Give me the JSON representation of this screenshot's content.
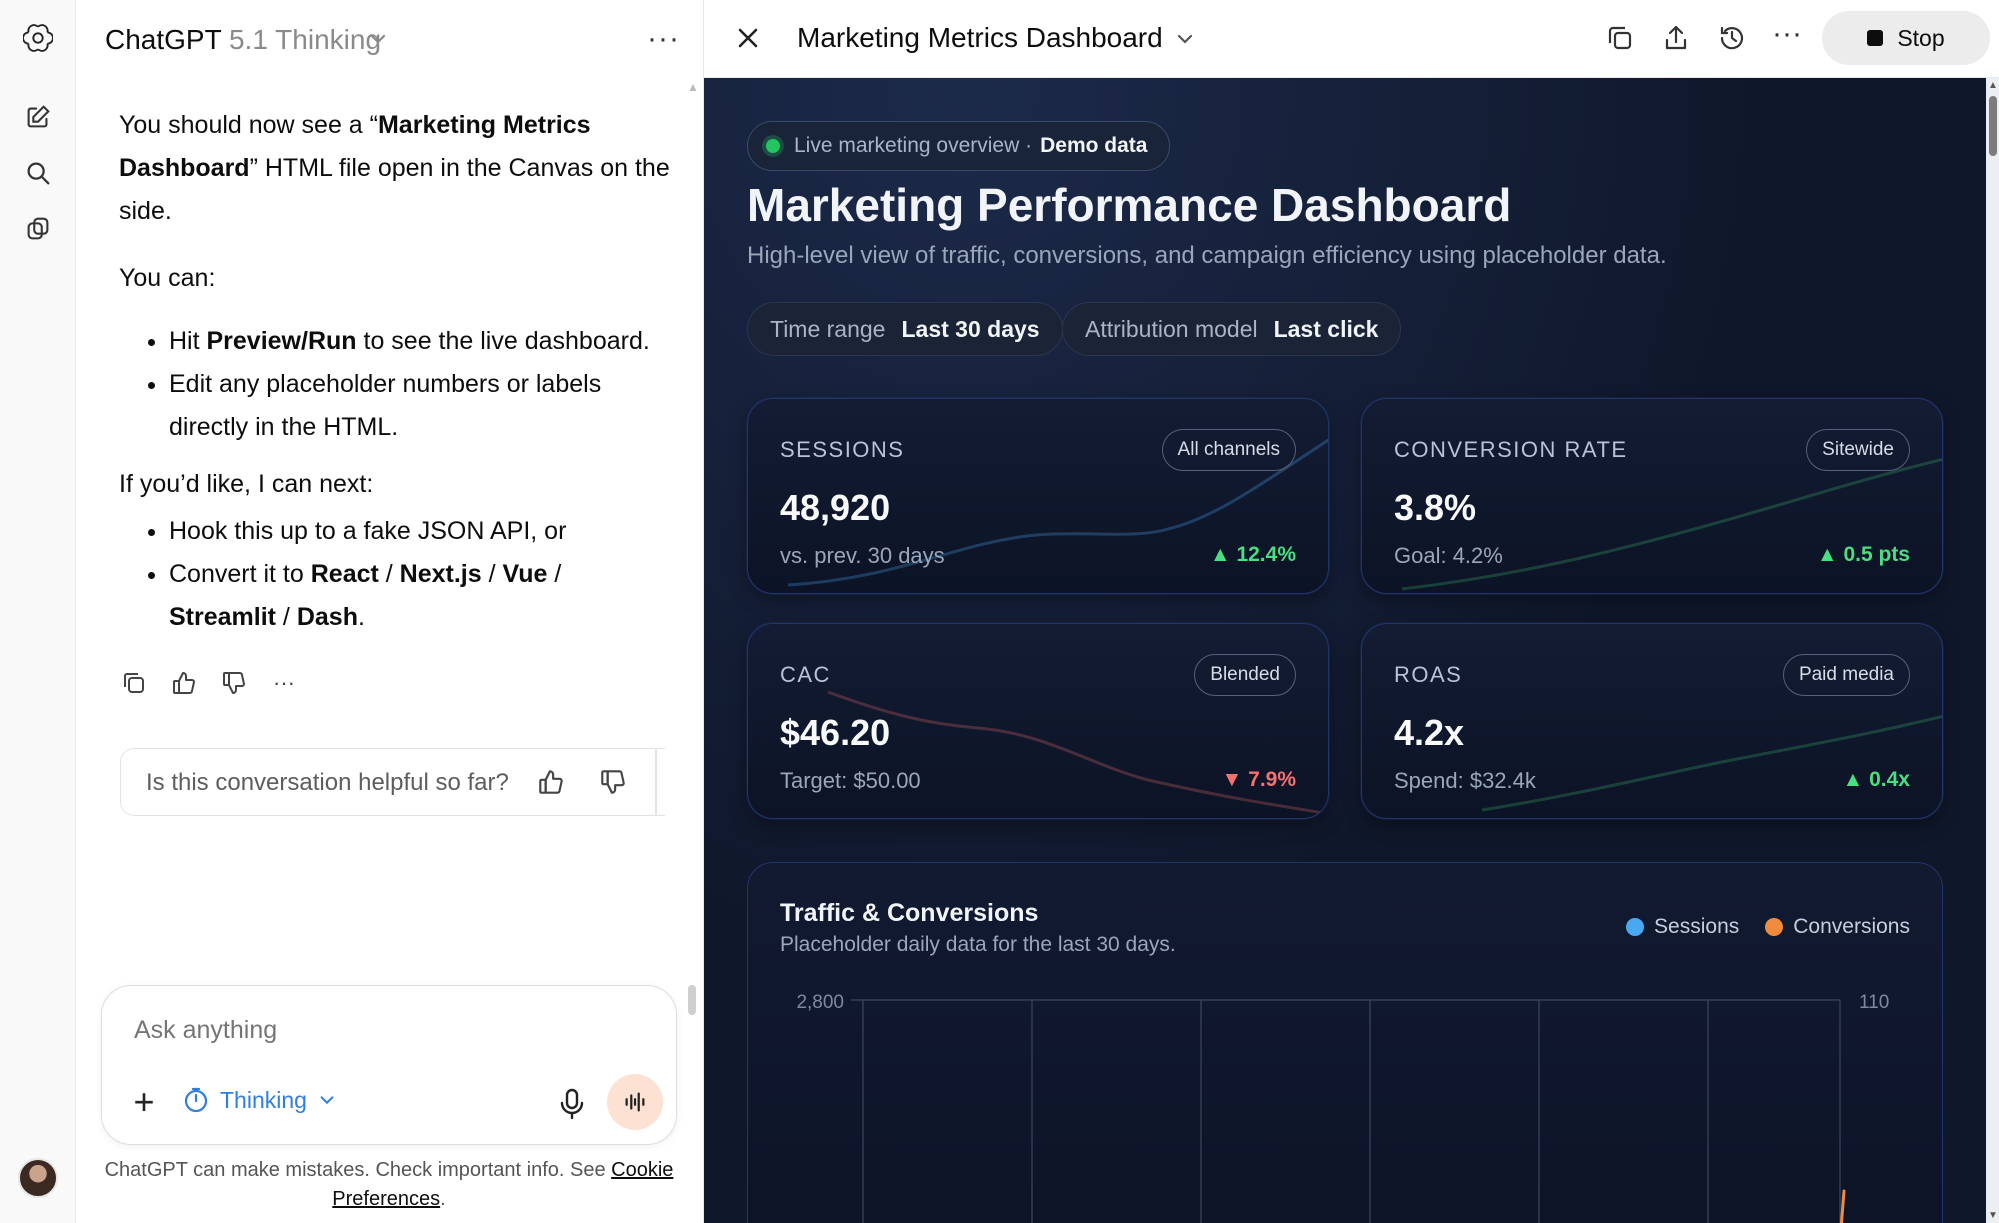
{
  "app": {
    "model_name": "ChatGPT",
    "model_version": "5.1 Thinking",
    "more": "···"
  },
  "rail": {
    "icons": [
      "openai-logo-icon",
      "new-chat-icon",
      "search-icon",
      "gpts-icon"
    ],
    "avatar": "avatar"
  },
  "chat": {
    "intro_pre": "You should now see a “",
    "intro_bold": "Marketing Metrics Dashboard",
    "intro_post": "” HTML file open in the Canvas on the side.",
    "you_can": "You can:",
    "bullet1_pre": "Hit ",
    "bullet1_bold": "Preview/Run",
    "bullet1_post": " to see the live dashboard.",
    "bullet2": "Edit any placeholder numbers or labels directly in the HTML.",
    "next": "If you’d like, I can next:",
    "bullet3": "Hook this up to a fake JSON API, or",
    "bullet4_pre": "Convert it to ",
    "bullet4_react": "React",
    "bullet4_next": "Next.js",
    "bullet4_vue": "Vue",
    "bullet4_streamlit": "Streamlit",
    "bullet4_dash": "Dash",
    "sep": " / ",
    "period": ".",
    "feedback_question": "Is this conversation helpful so far?"
  },
  "composer": {
    "placeholder": "Ask anything",
    "mode": "Thinking",
    "disclaimer_text": "ChatGPT can make mistakes. Check important info. See ",
    "disclaimer_link": "Cookie Preferences",
    "disclaimer_end": "."
  },
  "canvas": {
    "title": "Marketing Metrics Dashboard",
    "stop_label": "Stop"
  },
  "dashboard": {
    "pill_text": "Live marketing overview · ",
    "pill_bold": "Demo data",
    "title": "Marketing Performance Dashboard",
    "subtitle": "High-level view of traffic, conversions, and campaign efficiency using placeholder data.",
    "filters": [
      {
        "key": "Time range",
        "value": "Last 30 days"
      },
      {
        "key": "Attribution model",
        "value": "Last click"
      }
    ],
    "cards": [
      {
        "label": "SESSIONS",
        "tag": "All channels",
        "value": "48,920",
        "compare": "vs. prev. 30 days",
        "delta": "▲ 12.4%",
        "direction": "up"
      },
      {
        "label": "CONVERSION RATE",
        "tag": "Sitewide",
        "value": "3.8%",
        "compare": "Goal: 4.2%",
        "delta": "▲ 0.5 pts",
        "direction": "up"
      },
      {
        "label": "CAC",
        "tag": "Blended",
        "value": "$46.20",
        "compare": "Target: $50.00",
        "delta": "▼ 7.9%",
        "direction": "down"
      },
      {
        "label": "ROAS",
        "tag": "Paid media",
        "value": "4.2x",
        "compare": "Spend: $32.4k",
        "delta": "▲ 0.4x",
        "direction": "up"
      }
    ],
    "colors": {
      "up": "#4ade80",
      "down": "#f87171",
      "sessions": "#4aa8f0",
      "conversions": "#f08a3c"
    }
  },
  "chart_data": {
    "type": "line",
    "title": "Traffic & Conversions",
    "subtitle": "Placeholder daily data for the last 30 days.",
    "series": [
      {
        "name": "Sessions",
        "axis": "left"
      },
      {
        "name": "Conversions",
        "axis": "right"
      }
    ],
    "y_left_top_tick": "2,800",
    "y_right_top_tick": "110",
    "grid": true,
    "legend": "top-right"
  }
}
